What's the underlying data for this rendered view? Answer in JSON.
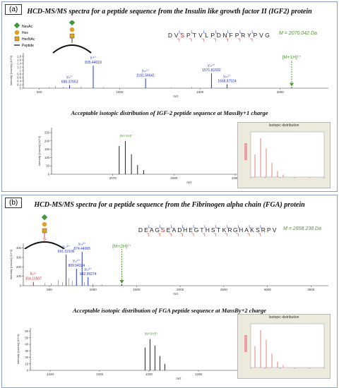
{
  "panel_a": {
    "label": "(a)",
    "title": "HCD-MS/MS spectra for a peptide sequence from the Insulin like growth factor II (IGF2) protein",
    "glycan_legend": [
      "NeuAc",
      "Hex",
      "HexNAc",
      "Peptide"
    ],
    "sequence": [
      "D",
      "V",
      "S",
      "P",
      "T",
      "V",
      "L",
      "P",
      "D",
      "N",
      "F",
      "P",
      "R",
      "Y",
      "P",
      "V",
      "G"
    ],
    "glyco_residue_index": 2,
    "mass_label": "M = 2070.042 Da",
    "precursor_label": "[M+1H]¹⁺",
    "subtitle": "Acceptable isotopic distribution of IGF-2 peptide sequence at MassBy+1 charge",
    "iso_precursor_label": "[M+1H]¹⁺",
    "inset_title": "Isotopic distribution"
  },
  "panel_b": {
    "label": "(b)",
    "title": "HCD-MS/MS spectra for a peptide sequence from the Fibrinogen alpha chain (FGA) protein",
    "sequence": [
      "D",
      "E",
      "A",
      "G",
      "S",
      "E",
      "A",
      "D",
      "H",
      "E",
      "G",
      "T",
      "H",
      "S",
      "T",
      "K",
      "R",
      "G",
      "H",
      "A",
      "K",
      "S",
      "R",
      "P",
      "V"
    ],
    "glyco_residue_index": 4,
    "mass_label": "M = 2658.238 Da",
    "precursor_label": "[M+2H]²⁺",
    "subtitle": "Acceptable isotopic distribution of FGA peptide sequence at MassBy+2 charge",
    "iso_precursor_label": "[M+2H]²⁺",
    "inset_title": "Isotopic distribution"
  },
  "colors": {
    "neuac": "#3f9a3f",
    "hex": "#e0a020",
    "hexnac": "#e0a020",
    "peptide": "#111111",
    "b_ion": "#cc2222",
    "y_ion": "#2233cc",
    "precursor": "#4a9a2a",
    "peak": "#222222"
  },
  "chart_data": [
    {
      "type": "bar",
      "panel": "a",
      "title": "",
      "xlabel": "m/z",
      "ylabel": "Intensity [counts] (10^3)",
      "xlim": [
        400,
        2300
      ],
      "ylim": [
        0,
        2.0
      ],
      "x_ticks": [
        500,
        1000,
        1500,
        2000
      ],
      "y_ticks": [
        0,
        0.2,
        0.4,
        0.6,
        0.8,
        1.0,
        1.2,
        1.4,
        1.6,
        1.8
      ],
      "peaks": [
        {
          "x": 215.10222,
          "y": 1.55,
          "label": "b₂¹⁺",
          "sublabel": "215.10222",
          "ion": "b"
        },
        {
          "x": 688.37653,
          "y": 0.18,
          "label": "y₆¹⁺",
          "sublabel": "688.37653",
          "ion": "y"
        },
        {
          "x": 835.44019,
          "y": 1.28,
          "label": "y₇¹⁺",
          "sublabel": "835.44019",
          "ion": "y"
        },
        {
          "x": 1161.56641,
          "y": 0.55,
          "label": "y₁₀¹⁺",
          "sublabel": "1161.56641",
          "ion": "y"
        },
        {
          "x": 1571.81592,
          "y": 0.85,
          "label": "y₁₄¹⁺",
          "sublabel": "1571.81592",
          "ion": "y"
        },
        {
          "x": 1668.87524,
          "y": 0.22,
          "label": "y₁₅¹⁺",
          "sublabel": "1668.87524",
          "ion": "y"
        },
        {
          "x": 2071.05,
          "y": 0.06,
          "label": "",
          "sublabel": "",
          "ion": "precursor"
        }
      ]
    },
    {
      "type": "bar",
      "panel": "a-isotope",
      "xlabel": "m/z",
      "ylabel": "Intensity [counts] (10^3)",
      "xlim": [
        2060,
        2105
      ],
      "ylim": [
        0,
        280
      ],
      "x_ticks": [
        2070,
        2080,
        2090,
        2100
      ],
      "y_ticks": [
        0,
        50,
        100,
        150,
        200,
        250
      ],
      "peaks": [
        {
          "x": 2071.05,
          "y": 170
        },
        {
          "x": 2072.05,
          "y": 200
        },
        {
          "x": 2073.05,
          "y": 120
        },
        {
          "x": 2074.05,
          "y": 55
        },
        {
          "x": 2075.05,
          "y": 25
        }
      ]
    },
    {
      "type": "bar",
      "panel": "b",
      "xlabel": "m/z",
      "ylabel": "Intensity [counts] (10^3)",
      "xlim": [
        200,
        3700
      ],
      "ylim": [
        0,
        450
      ],
      "x_ticks": [
        500,
        1000,
        1500,
        2000,
        2500,
        3000,
        3500
      ],
      "y_ticks": [
        0,
        100,
        200,
        300,
        400
      ],
      "peaks": [
        {
          "x": 316.11507,
          "y": 40,
          "label": "b₃¹⁺",
          "sublabel": "316.11507",
          "ion": "b"
        },
        {
          "x": 691.02106,
          "y": 330,
          "label": "y₁₀²⁺",
          "sublabel": "691.02106",
          "ion": "y"
        },
        {
          "x": 809.94324,
          "y": 180,
          "label": "y₁₂²⁺",
          "sublabel": "809.94324",
          "ion": "y"
        },
        {
          "x": 874.44965,
          "y": 360,
          "label": "y₁₄²⁺",
          "sublabel": "874.44965",
          "ion": "y"
        },
        {
          "x": 942.99274,
          "y": 90,
          "label": "y₁₅²⁺",
          "sublabel": "942.99274",
          "ion": "y"
        },
        {
          "x": 1330.1,
          "y": 15,
          "label": "",
          "sublabel": "",
          "ion": "precursor"
        }
      ]
    },
    {
      "type": "bar",
      "panel": "b-isotope",
      "xlabel": "m/z",
      "ylabel": "Intensity [counts] (10^3)",
      "xlim": [
        1318,
        1348
      ],
      "ylim": [
        0,
        65
      ],
      "x_ticks": [
        1320,
        1325,
        1330,
        1335,
        1340,
        1345
      ],
      "y_ticks": [
        0,
        10,
        20,
        30,
        40,
        50,
        60
      ],
      "peaks": [
        {
          "x": 1329.6,
          "y": 35
        },
        {
          "x": 1330.1,
          "y": 48
        },
        {
          "x": 1330.6,
          "y": 38
        },
        {
          "x": 1331.1,
          "y": 22
        },
        {
          "x": 1331.6,
          "y": 10
        }
      ]
    }
  ]
}
